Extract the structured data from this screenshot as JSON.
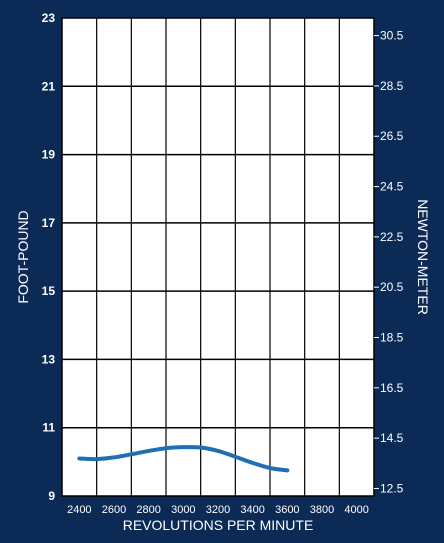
{
  "colors": {
    "background": "#0b2a55",
    "plot_area": "#ffffff",
    "grid": "#000000",
    "axis_text": "#ffffff",
    "series": "#1f6fb2"
  },
  "chart_data": {
    "type": "line",
    "title": "",
    "xlabel": "REVOLUTIONS PER MINUTE",
    "ylabel": "FOOT-POUND",
    "y2label": "NEWTON-METER",
    "xlim": [
      2300,
      4100
    ],
    "ylim": [
      9,
      23
    ],
    "y2lim": [
      12.2,
      31.2
    ],
    "x_ticks": [
      2400,
      2600,
      2800,
      3000,
      3200,
      3400,
      3600,
      3800,
      4000
    ],
    "x_tick_labels": [
      "2400",
      "2600",
      "2800",
      "3000",
      "3200",
      "3400",
      "3600",
      "3800",
      "4000"
    ],
    "x_grid": [
      2500,
      2700,
      2900,
      3100,
      3300,
      3500,
      3700,
      3900
    ],
    "y_ticks": [
      9,
      11,
      13,
      15,
      17,
      19,
      21,
      23
    ],
    "y_tick_labels": [
      "9",
      "11",
      "13",
      "15",
      "17",
      "19",
      "21",
      "23"
    ],
    "y2_ticks": [
      12.5,
      14.5,
      16.5,
      18.5,
      20.5,
      22.5,
      24.5,
      26.5,
      28.5,
      30.5
    ],
    "y2_tick_labels": [
      "12.5",
      "14.5",
      "16.5",
      "18.5",
      "20.5",
      "22.5",
      "24.5",
      "26.5",
      "28.5",
      "30.5"
    ],
    "grid": true,
    "series": [
      {
        "x": [
          2400,
          2500,
          2600,
          2700,
          2800,
          2900,
          3000,
          3100,
          3200,
          3300,
          3400,
          3500,
          3600
        ],
        "values": [
          10.1,
          10.08,
          10.13,
          10.22,
          10.32,
          10.4,
          10.43,
          10.42,
          10.32,
          10.15,
          9.97,
          9.82,
          9.75
        ]
      }
    ]
  }
}
